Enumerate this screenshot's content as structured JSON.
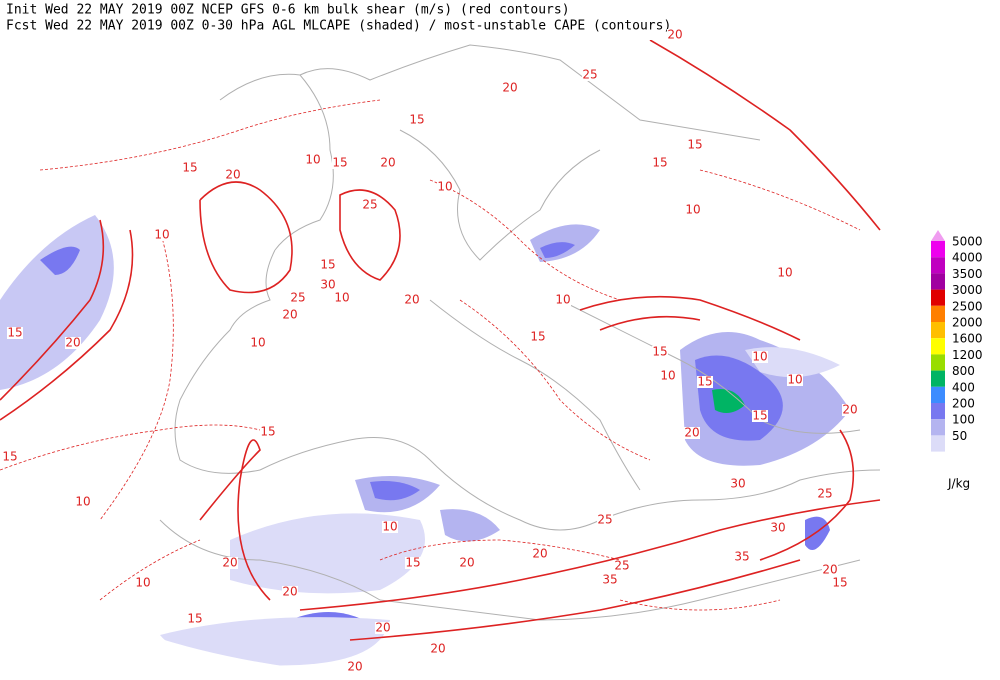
{
  "header": {
    "lines": [
      "Init  Wed 22 MAY 2019 00Z  NCEP GFS 0-6 km bulk shear (m/s) (red contours)",
      "Fcst Wed 22 MAY 2019 00Z  0-30 hPa AGL MLCAPE (shaded) / most-unstable CAPE (contours)"
    ]
  },
  "legend": {
    "levels": [
      5000,
      4000,
      3500,
      3000,
      2500,
      2000,
      1600,
      1200,
      800,
      400,
      200,
      100,
      50
    ],
    "colors": [
      "#ee00ee",
      "#c000c0",
      "#a000a0",
      "#e00000",
      "#ff7f00",
      "#ffbf00",
      "#ffff00",
      "#99dd00",
      "#00b464",
      "#3c8cff",
      "#7878f0",
      "#b4b4f0",
      "#dcdcf8"
    ],
    "top_color": "#f09cf0",
    "unit": "J/kg"
  },
  "contour_labels": [
    20,
    25,
    20,
    15,
    15,
    15,
    10,
    15,
    20,
    15,
    20,
    10,
    25,
    10,
    10,
    15,
    30,
    10,
    25,
    20,
    20,
    10,
    15,
    20,
    10,
    10,
    15,
    15,
    10,
    15,
    10,
    10,
    15,
    20,
    20,
    15,
    15,
    10,
    30,
    25,
    10,
    25,
    20,
    30,
    35,
    20,
    15,
    20,
    35,
    25,
    10,
    20,
    20,
    15,
    15,
    20,
    20,
    20
  ],
  "contour_color": "#dd2222"
}
